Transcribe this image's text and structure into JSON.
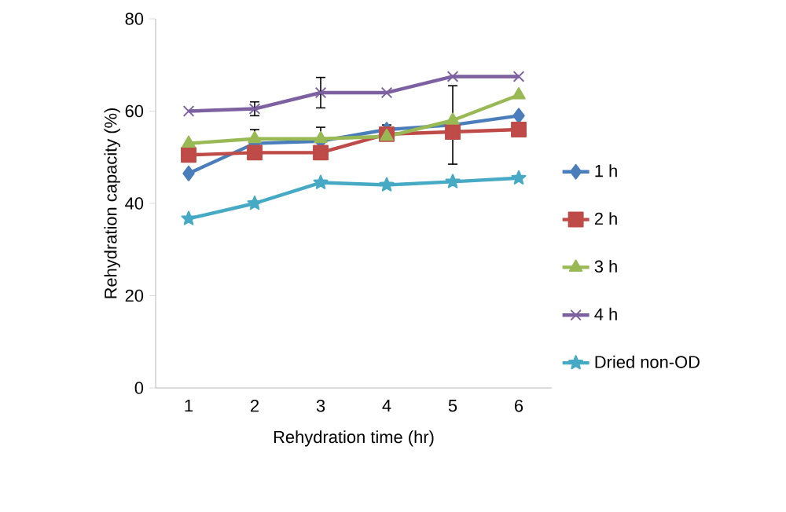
{
  "chart_data": {
    "type": "line",
    "xlabel": "Rehydration time (hr)",
    "ylabel": "Rehydration capacity (%)",
    "categories": [
      "1",
      "2",
      "3",
      "4",
      "5",
      "6"
    ],
    "ylim": [
      0,
      80
    ],
    "yticks": [
      0,
      20,
      40,
      60,
      80
    ],
    "grid": false,
    "legend": "right",
    "line_style": "solid",
    "series": [
      {
        "name": "1 h",
        "color": "#4a7ebb",
        "marker": "diamond",
        "values": [
          46.5,
          53,
          53.5,
          56,
          57,
          59
        ],
        "errors": [
          null,
          3,
          3,
          1,
          8.5,
          null
        ]
      },
      {
        "name": "2 h",
        "color": "#be4b48",
        "marker": "square",
        "values": [
          50.5,
          51,
          51,
          55,
          55.5,
          56
        ]
      },
      {
        "name": "3 h",
        "color": "#98b954",
        "marker": "triangle",
        "values": [
          53,
          54,
          54,
          54.5,
          58,
          63.5
        ]
      },
      {
        "name": "4 h",
        "color": "#7d60a0",
        "marker": "cross",
        "values": [
          60,
          60.5,
          64,
          64,
          67.5,
          67.5
        ],
        "errors": [
          null,
          1.5,
          3.3,
          null,
          null,
          null
        ]
      },
      {
        "name": "Dried non-OD",
        "color": "#46aac5",
        "marker": "star",
        "values": [
          36.7,
          40,
          44.5,
          44,
          44.7,
          45.5
        ]
      }
    ]
  }
}
